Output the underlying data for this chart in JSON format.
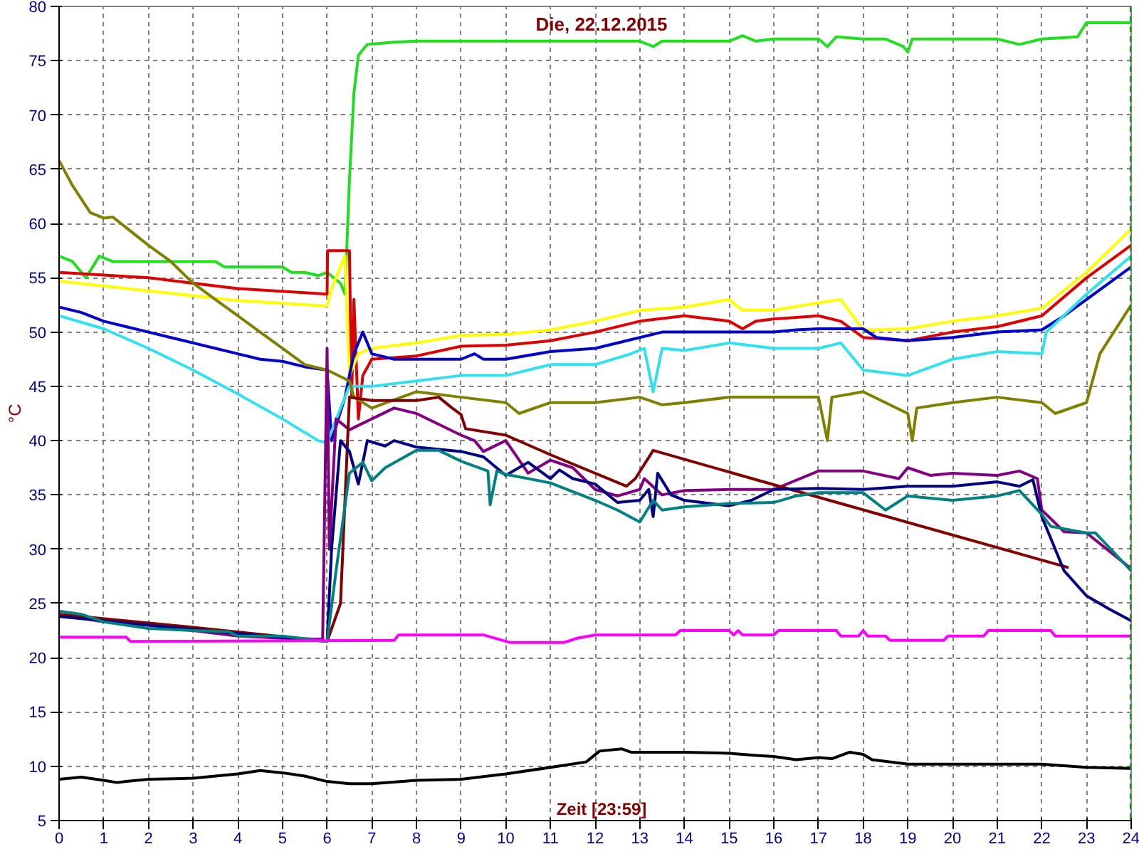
{
  "chart_data": {
    "type": "line",
    "title": "Die, 22.12.2015",
    "xlabel": "Zeit [23:59]",
    "ylabel": "°C",
    "xlim": [
      0,
      24
    ],
    "xticks": [
      0,
      1,
      2,
      3,
      4,
      5,
      6,
      7,
      8,
      9,
      10,
      11,
      12,
      13,
      14,
      15,
      16,
      17,
      18,
      19,
      20,
      21,
      22,
      23,
      24
    ],
    "ylim": [
      5,
      80
    ],
    "yticks": [
      5,
      10,
      15,
      20,
      25,
      30,
      35,
      40,
      45,
      50,
      55,
      60,
      65,
      70,
      75,
      80
    ],
    "grid": true,
    "marker": "none",
    "line_style": "solid",
    "ref_lines": [
      {
        "axis": "x",
        "value": 24,
        "color": "#00a000",
        "line_style": "dashed"
      }
    ],
    "series": [
      {
        "color": "#22dd22",
        "x": [
          0,
          0.3,
          0.6,
          0.9,
          1.2,
          3.5,
          3.7,
          4.0,
          5.0,
          5.2,
          5.5,
          5.8,
          6.0,
          6.3,
          6.4,
          6.5,
          6.6,
          6.7,
          6.9,
          7.5,
          8,
          9,
          10,
          11,
          12,
          13,
          13.3,
          13.5,
          14,
          15,
          15.3,
          15.6,
          16,
          17,
          17.2,
          17.4,
          18,
          18.5,
          18.9,
          19,
          19.1,
          20,
          21,
          21.5,
          22,
          22.8,
          23,
          24
        ],
        "values": [
          57,
          56.5,
          55,
          57,
          56.5,
          56.5,
          56,
          56,
          56,
          55.5,
          55.5,
          55.2,
          55.5,
          54.5,
          53.5,
          64,
          72,
          75.5,
          76.5,
          76.7,
          76.8,
          76.8,
          76.8,
          76.8,
          76.8,
          76.8,
          76.3,
          76.8,
          76.8,
          76.8,
          77.3,
          76.8,
          77,
          77,
          76.3,
          77.2,
          77,
          77,
          76.3,
          75.8,
          77,
          77,
          77,
          76.5,
          77,
          77.2,
          78.5,
          78.5
        ]
      },
      {
        "color": "#dd0000",
        "x": [
          0,
          2,
          4,
          6.0,
          6.01,
          6.5,
          6.55,
          6.6,
          6.7,
          6.8,
          7,
          8,
          9,
          10,
          11,
          12,
          13,
          14,
          15,
          15.3,
          15.6,
          16,
          17,
          17.5,
          18,
          19,
          20,
          21,
          22,
          23,
          24
        ],
        "values": [
          55.5,
          55,
          54,
          53.5,
          57.5,
          57.5,
          44,
          53,
          42,
          46,
          47.5,
          47.8,
          48.7,
          48.8,
          49.2,
          50,
          51,
          51.5,
          51,
          50.3,
          51,
          51.2,
          51.5,
          51,
          49.5,
          49.2,
          50,
          50.5,
          51.5,
          55,
          58
        ]
      },
      {
        "color": "#ffff00",
        "x": [
          0,
          2,
          4,
          6.0,
          6.1,
          6.4,
          6.5,
          6.7,
          7,
          8,
          9,
          10,
          11,
          12,
          13,
          14,
          15,
          15.3,
          16,
          17,
          17.5,
          18,
          19,
          20,
          21,
          22,
          23,
          24
        ],
        "values": [
          54.7,
          53.8,
          52.9,
          52.4,
          54,
          57,
          46,
          48,
          48.5,
          49,
          49.7,
          49.8,
          50.2,
          51,
          52,
          52.3,
          53,
          52,
          52,
          52.7,
          53,
          50.2,
          50.3,
          51,
          51.5,
          52.2,
          55.5,
          59.5
        ]
      },
      {
        "color": "#0000cc",
        "x": [
          0,
          0.5,
          1,
          1.5,
          2,
          2.5,
          3,
          3.5,
          4,
          4.5,
          5,
          5.5,
          6.0,
          6.1,
          6.4,
          6.6,
          6.8,
          7,
          7.5,
          8,
          9,
          9.3,
          9.5,
          10,
          11,
          12,
          13,
          13.5,
          15,
          16,
          16.5,
          17,
          18,
          18.3,
          19,
          20,
          21,
          22,
          22.5,
          23,
          24
        ],
        "values": [
          52.3,
          51.8,
          51,
          50.5,
          50,
          49.5,
          49,
          48.5,
          48,
          47.5,
          47.3,
          46.8,
          46.5,
          40,
          44,
          48,
          50,
          48,
          47.5,
          47.5,
          47.5,
          48,
          47.5,
          47.5,
          48.2,
          48.5,
          49.5,
          50,
          50,
          50,
          50.2,
          50.3,
          50.3,
          49.5,
          49.2,
          49.5,
          50,
          50.2,
          51.5,
          53,
          56
        ]
      },
      {
        "color": "#33e0ee",
        "x": [
          0,
          1,
          2,
          3,
          4,
          5,
          5.8,
          6.0,
          6.3,
          6.5,
          7,
          8,
          9,
          10,
          11,
          12,
          12.8,
          13.1,
          13.3,
          13.5,
          14,
          15,
          16,
          17,
          17.5,
          18,
          19,
          20,
          21,
          22,
          22.1,
          23,
          24
        ],
        "values": [
          51.5,
          50.3,
          48.5,
          46.5,
          44.3,
          42,
          40,
          39.8,
          43,
          45,
          45,
          45.5,
          46,
          46,
          47,
          47,
          48,
          48.5,
          44.5,
          48.5,
          48.3,
          49,
          48.5,
          48.5,
          49,
          46.5,
          46,
          47.5,
          48.2,
          48,
          50,
          53.5,
          57
        ]
      },
      {
        "color": "#808000",
        "x": [
          0,
          0.3,
          0.7,
          1,
          1.2,
          2,
          2.5,
          3,
          3.5,
          4,
          4.5,
          5,
          5.5,
          6,
          6.5,
          6.6,
          7,
          8,
          9,
          10,
          10.3,
          11,
          12,
          13,
          13.5,
          14,
          15,
          16,
          17,
          17.2,
          17.3,
          18,
          18.5,
          19,
          19.1,
          19.2,
          20,
          21,
          22,
          22.3,
          23,
          23.3,
          24
        ],
        "values": [
          65.8,
          63.5,
          61,
          60.5,
          60.6,
          58,
          56.5,
          54.5,
          53,
          51.5,
          50,
          48.5,
          47,
          46.5,
          45.5,
          44,
          43,
          44.5,
          44,
          43.5,
          42.5,
          43.5,
          43.5,
          44,
          43.3,
          43.5,
          44,
          44,
          44,
          40,
          44,
          44.5,
          43.5,
          42.5,
          40,
          43,
          43.5,
          44,
          43.5,
          42.5,
          43.5,
          48,
          52.5
        ]
      },
      {
        "color": "#800080",
        "x": [
          0,
          1,
          2,
          3,
          4,
          5,
          5.9,
          6.0,
          6.05,
          6.2,
          6.5,
          7,
          7.5,
          8,
          9,
          9.3,
          9.5,
          10,
          10.5,
          11,
          11.5,
          12,
          12.5,
          13,
          13.1,
          13.5,
          14,
          15,
          16,
          17,
          18,
          18.8,
          19,
          19.5,
          20,
          21,
          21.5,
          21.9,
          22,
          22.5,
          23,
          24
        ],
        "values": [
          24,
          23.3,
          23,
          22.5,
          22,
          21.8,
          21.7,
          48.5,
          30,
          42,
          41,
          42,
          43,
          42.5,
          40.5,
          40,
          39,
          40,
          37,
          38.2,
          37.5,
          35.5,
          34.9,
          35.5,
          36.5,
          35,
          35.4,
          35.5,
          35.5,
          37.2,
          37.2,
          36.5,
          37.5,
          36.8,
          37,
          36.8,
          37.2,
          36.5,
          33.6,
          31.6,
          31.5,
          28.2
        ]
      },
      {
        "color": "#800000",
        "x": [
          0,
          3,
          6,
          6.3,
          6.5,
          7,
          8,
          8.5,
          8.8,
          9,
          9.1,
          10,
          11,
          12.7,
          12.9,
          13.3,
          15.6,
          22.6
        ],
        "values": [
          24,
          22.8,
          21.5,
          25,
          44,
          43.7,
          43.7,
          44,
          43,
          42.4,
          41.1,
          40.5,
          38.7,
          35.8,
          36.5,
          39.1,
          36.4,
          28.3
        ]
      },
      {
        "color": "#000080",
        "x": [
          0,
          3,
          6,
          6.1,
          6.3,
          6.5,
          6.7,
          6.9,
          7.3,
          7.5,
          8,
          9,
          9.5,
          10,
          10.5,
          11,
          11.2,
          11.5,
          12,
          12.5,
          13,
          13.2,
          13.3,
          13.4,
          13.7,
          14,
          15,
          15.5,
          16,
          17,
          18,
          19,
          20,
          21,
          21.5,
          21.8,
          22,
          22.5,
          23,
          23.5,
          24
        ],
        "values": [
          23.8,
          22.6,
          21.5,
          30,
          40,
          39,
          36,
          40,
          39.5,
          40,
          39.4,
          39,
          38.5,
          36.8,
          38,
          36.5,
          37.3,
          36.5,
          36,
          34.3,
          34.5,
          35.5,
          33,
          37,
          35,
          34.5,
          34,
          34.5,
          35.5,
          35.6,
          35.5,
          35.8,
          35.8,
          36.2,
          35.8,
          36.4,
          33,
          28,
          25.7,
          24.5,
          23.4
        ]
      },
      {
        "color": "#008080",
        "x": [
          0,
          0.5,
          1,
          2,
          3,
          3.8,
          4,
          5,
          6,
          6.2,
          6.5,
          6.8,
          7,
          7.3,
          8,
          8.5,
          9,
          9.6,
          9.65,
          9.8,
          10,
          11,
          12,
          12.5,
          13,
          13.3,
          13.5,
          14,
          15,
          16,
          16.5,
          17,
          18,
          18.5,
          19,
          20,
          21,
          21.5,
          22,
          22.2,
          23,
          23.2,
          24
        ],
        "values": [
          24.3,
          24,
          23.3,
          22.7,
          22.5,
          22.4,
          22,
          22,
          21.5,
          28,
          37,
          38,
          36.3,
          37.5,
          39.1,
          39.1,
          38.1,
          37.2,
          34.1,
          37.2,
          36.9,
          36.1,
          34.5,
          33.6,
          32.5,
          34.5,
          33.6,
          33.9,
          34.2,
          34.3,
          34.9,
          35.2,
          35.2,
          33.6,
          34.9,
          34.5,
          34.9,
          35.4,
          33.2,
          32.1,
          31.5,
          31.5,
          28
        ]
      },
      {
        "color": "#ff00ff",
        "x": [
          0,
          1.5,
          1.6,
          7.5,
          7.6,
          9.5,
          10.1,
          11.3,
          11.6,
          12,
          13.8,
          13.9,
          15,
          15.1,
          15.2,
          15.3,
          16,
          16.1,
          17.4,
          17.5,
          17.9,
          18,
          18.1,
          18.5,
          18.6,
          19.8,
          19.9,
          20.7,
          20.8,
          22.2,
          22.3,
          24
        ],
        "values": [
          21.9,
          21.9,
          21.5,
          21.6,
          22.1,
          22.1,
          21.4,
          21.4,
          21.8,
          22.1,
          22.1,
          22.5,
          22.5,
          22.1,
          22.5,
          22.1,
          22.1,
          22.5,
          22.5,
          22.0,
          22.0,
          22.5,
          22.0,
          22.0,
          21.6,
          21.6,
          22.0,
          22.0,
          22.5,
          22.5,
          22.0,
          22.0
        ]
      },
      {
        "color": "#000000",
        "x": [
          0,
          0.5,
          1,
          1.3,
          1.5,
          2,
          3,
          4,
          4.5,
          5,
          5.5,
          6,
          6.5,
          7,
          8,
          9,
          10,
          11,
          11.8,
          12.1,
          12.6,
          12.8,
          14,
          15,
          15.6,
          16,
          16.5,
          17,
          17.3,
          17.7,
          18,
          18.2,
          19,
          20,
          21,
          22,
          23,
          24
        ],
        "values": [
          8.8,
          9.0,
          8.7,
          8.5,
          8.6,
          8.8,
          8.9,
          9.3,
          9.6,
          9.4,
          9.1,
          8.6,
          8.4,
          8.4,
          8.7,
          8.8,
          9.3,
          9.9,
          10.4,
          11.4,
          11.6,
          11.3,
          11.3,
          11.2,
          11.0,
          10.9,
          10.6,
          10.8,
          10.7,
          11.3,
          11.1,
          10.6,
          10.2,
          10.2,
          10.2,
          10.2,
          9.9,
          9.8
        ]
      }
    ]
  }
}
